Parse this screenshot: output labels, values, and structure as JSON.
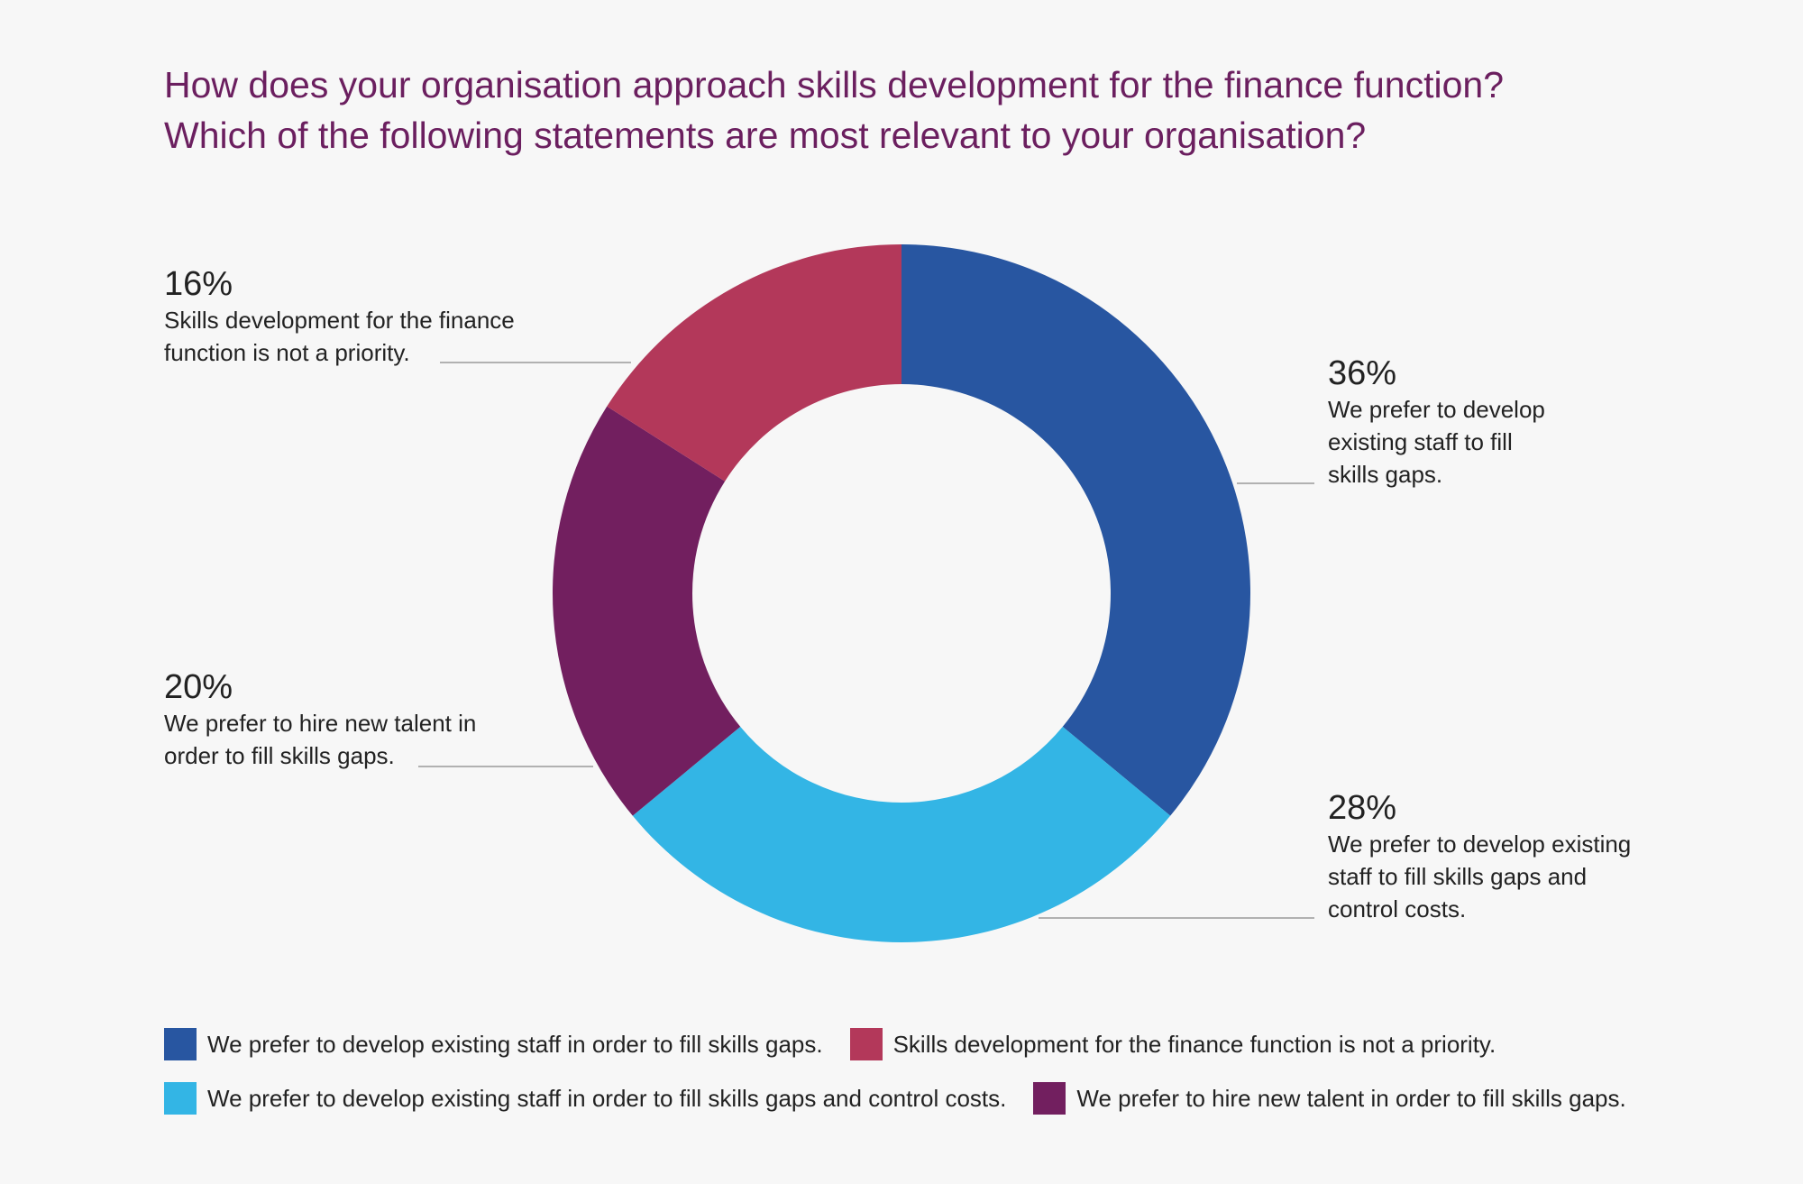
{
  "title": {
    "line1": "How does your organisation approach skills development for the finance function?",
    "line2": "Which of the following statements are most relevant to your organisation?"
  },
  "chart_data": {
    "type": "pie",
    "donut": true,
    "title": "How does your organisation approach skills development for the finance function? Which of the following statements are most relevant to your organisation?",
    "slices": [
      {
        "key": "develop",
        "value": 36,
        "pct_label": "36%",
        "callout_lines": [
          "We prefer to develop",
          "existing staff to fill",
          "skills gaps."
        ],
        "legend_label": "We prefer to develop existing staff in order to fill skills gaps.",
        "color": "#2856a1"
      },
      {
        "key": "develop-costs",
        "value": 28,
        "pct_label": "28%",
        "callout_lines": [
          "We prefer to develop existing",
          "staff to fill skills gaps and",
          "control costs."
        ],
        "legend_label": "We prefer to develop existing staff in order to fill skills gaps and control costs.",
        "color": "#33b5e5"
      },
      {
        "key": "hire",
        "value": 20,
        "pct_label": "20%",
        "callout_lines": [
          "We prefer to hire new talent in",
          "order to fill skills gaps."
        ],
        "legend_label": "We prefer to hire new talent in order to fill skills gaps.",
        "color": "#721f5f"
      },
      {
        "key": "not-priority",
        "value": 16,
        "pct_label": "16%",
        "callout_lines": [
          "Skills development for the finance",
          "function is not a priority."
        ],
        "legend_label": "Skills development for the finance function is not a priority.",
        "color": "#b3385a"
      }
    ],
    "legend": {
      "placement": "bottom",
      "rows": [
        [
          "develop",
          "not-priority"
        ],
        [
          "develop-costs",
          "hire"
        ]
      ]
    }
  }
}
